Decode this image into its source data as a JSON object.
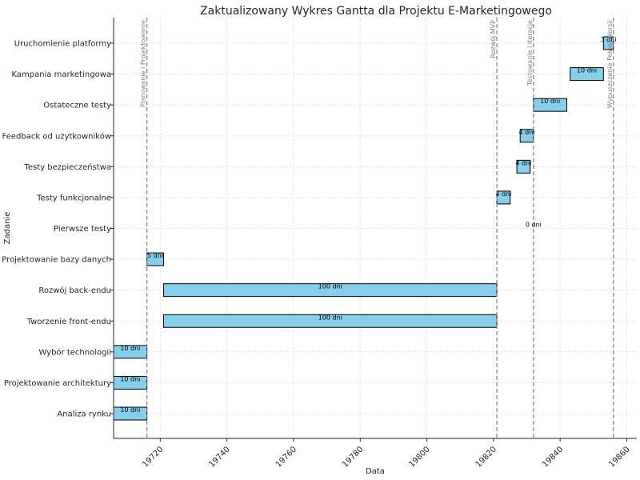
{
  "chart_data": {
    "type": "gantt",
    "title": "Zaktualizowany Wykres Gantta dla Projektu E-Marketingowego",
    "xlabel": "Data",
    "ylabel": "Zadanie",
    "xlim": [
      19706,
      19863
    ],
    "x_ticks": [
      19720,
      19740,
      19760,
      19780,
      19800,
      19820,
      19840,
      19860
    ],
    "grid": true,
    "bar_color": "#87CEEB",
    "bar_edge": "#000000",
    "milestone_color": "#808080",
    "tasks": [
      {
        "name": "Analiza rynku",
        "start": 19706,
        "duration": 10,
        "label": "10 dni"
      },
      {
        "name": "Projektowanie architektury",
        "start": 19706,
        "duration": 10,
        "label": "10 dni"
      },
      {
        "name": "Wybór technologii",
        "start": 19706,
        "duration": 10,
        "label": "10 dni"
      },
      {
        "name": "Tworzenie front-endu",
        "start": 19721,
        "duration": 100,
        "label": "100 dni"
      },
      {
        "name": "Rozwój back-endu",
        "start": 19721,
        "duration": 100,
        "label": "100 dni"
      },
      {
        "name": "Projektowanie bazy danych",
        "start": 19716,
        "duration": 5,
        "label": "5 dni"
      },
      {
        "name": "Pierwsze testy",
        "start": 19832,
        "duration": 0,
        "label": "0 dni"
      },
      {
        "name": "Testy funkcjonalne",
        "start": 19821,
        "duration": 4,
        "label": "4 dni"
      },
      {
        "name": "Testy bezpieczeństwa",
        "start": 19827,
        "duration": 4,
        "label": "4 dni"
      },
      {
        "name": "Feedback od użytkowników",
        "start": 19828,
        "duration": 4,
        "label": "4 dni"
      },
      {
        "name": "Ostateczne testy",
        "start": 19832,
        "duration": 10,
        "label": "10 dni"
      },
      {
        "name": "Kampania marketingowa",
        "start": 19843,
        "duration": 10,
        "label": "10 dni"
      },
      {
        "name": "Uruchomienie platformy",
        "start": 19853,
        "duration": 3,
        "label": "3 dni"
      }
    ],
    "milestones": [
      {
        "x": 19716,
        "label": "Planowanie i Projektowanie"
      },
      {
        "x": 19821,
        "label": "Rozwój MVP"
      },
      {
        "x": 19832,
        "label": "Testowanie i Iteracje"
      },
      {
        "x": 19856,
        "label": "Wypuszczenie Pełnej Wersji"
      }
    ]
  }
}
